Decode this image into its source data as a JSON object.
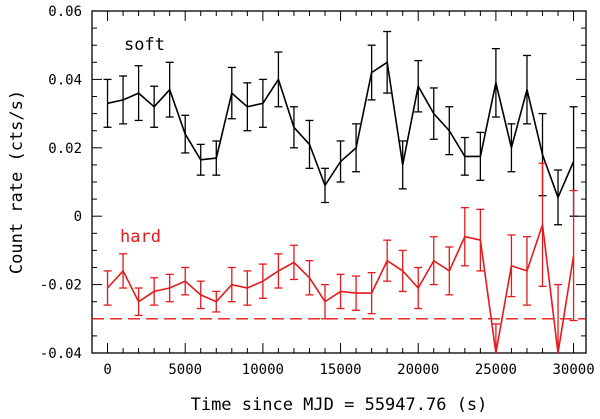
{
  "chart_data": {
    "type": "line",
    "xlabel": "Time since MJD = 55947.76 (s)",
    "ylabel": "Count rate (cts/s)",
    "xlim": [
      -1000,
      30800
    ],
    "ylim": [
      -0.04,
      0.06
    ],
    "xticks": [
      0,
      5000,
      10000,
      15000,
      20000,
      25000,
      30000
    ],
    "yticks": [
      -0.04,
      -0.02,
      0,
      0.02,
      0.04,
      0.06
    ],
    "xtick_labels": [
      "0",
      "5000",
      "10000",
      "15000",
      "20000",
      "25000",
      "30000"
    ],
    "ytick_labels": [
      "-0.04",
      "-0.02",
      "0",
      "0.02",
      "0.04",
      "0.06"
    ],
    "grid": false,
    "reference_line": {
      "y": -0.03,
      "style": "dashed",
      "color": "#e41a1c"
    },
    "series": [
      {
        "name": "soft",
        "color": "#000000",
        "x": [
          0,
          1000,
          2000,
          3000,
          4000,
          5000,
          6000,
          7000,
          8000,
          9000,
          10000,
          11000,
          12000,
          13000,
          14000,
          15000,
          16000,
          17000,
          18000,
          19000,
          20000,
          21000,
          22000,
          23000,
          24000,
          25000,
          26000,
          27000,
          28000,
          29000,
          30000
        ],
        "y": [
          0.033,
          0.034,
          0.036,
          0.032,
          0.037,
          0.024,
          0.0165,
          0.017,
          0.036,
          0.032,
          0.033,
          0.04,
          0.026,
          0.021,
          0.009,
          0.016,
          0.02,
          0.042,
          0.045,
          0.015,
          0.038,
          0.03,
          0.025,
          0.0175,
          0.0175,
          0.039,
          0.02,
          0.037,
          0.018,
          0.0055,
          0.016
        ],
        "err": [
          0.007,
          0.007,
          0.008,
          0.006,
          0.008,
          0.0055,
          0.0045,
          0.005,
          0.0075,
          0.007,
          0.007,
          0.008,
          0.006,
          0.007,
          0.005,
          0.006,
          0.007,
          0.008,
          0.009,
          0.007,
          0.0075,
          0.0075,
          0.007,
          0.0055,
          0.007,
          0.01,
          0.007,
          0.01,
          0.012,
          0.008,
          0.016
        ]
      },
      {
        "name": "hard",
        "color": "#e41a1c",
        "x": [
          0,
          1000,
          2000,
          3000,
          4000,
          5000,
          6000,
          7000,
          8000,
          9000,
          10000,
          11000,
          12000,
          13000,
          14000,
          15000,
          16000,
          17000,
          18000,
          19000,
          20000,
          21000,
          22000,
          23000,
          24000,
          25000,
          26000,
          27000,
          28000,
          29000,
          30000
        ],
        "y": [
          -0.021,
          -0.016,
          -0.025,
          -0.022,
          -0.021,
          -0.019,
          -0.023,
          -0.025,
          -0.02,
          -0.021,
          -0.019,
          -0.016,
          -0.0135,
          -0.018,
          -0.025,
          -0.022,
          -0.0225,
          -0.0225,
          -0.013,
          -0.016,
          -0.021,
          -0.013,
          -0.016,
          -0.006,
          -0.007,
          -0.04,
          -0.0145,
          -0.016,
          -0.0025,
          -0.04,
          -0.0115
        ]
      }
    ],
    "series_labels": [
      "soft",
      "hard"
    ]
  }
}
